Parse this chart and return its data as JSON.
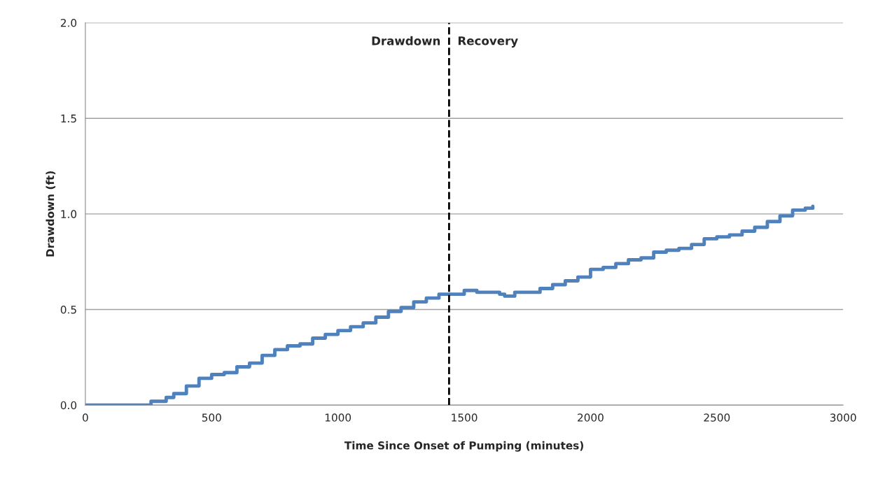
{
  "chart_data": {
    "type": "step",
    "xlabel": "Time Since Onset of Pumping (minutes)",
    "ylabel": "Drawdown (ft)",
    "x": [
      0,
      250,
      260,
      300,
      320,
      350,
      400,
      450,
      500,
      550,
      600,
      650,
      700,
      750,
      800,
      850,
      900,
      950,
      1000,
      1050,
      1100,
      1150,
      1200,
      1250,
      1300,
      1350,
      1400,
      1440,
      1500,
      1550,
      1600,
      1640,
      1660,
      1700,
      1750,
      1800,
      1850,
      1900,
      1950,
      2000,
      2050,
      2100,
      2150,
      2200,
      2250,
      2300,
      2350,
      2400,
      2450,
      2500,
      2550,
      2600,
      2650,
      2700,
      2750,
      2800,
      2850,
      2880
    ],
    "series": [
      {
        "color": "#4f81bd",
        "values": [
          0,
          0,
          0.02,
          0.02,
          0.04,
          0.06,
          0.1,
          0.14,
          0.16,
          0.17,
          0.2,
          0.22,
          0.26,
          0.29,
          0.31,
          0.32,
          0.35,
          0.37,
          0.39,
          0.41,
          0.43,
          0.46,
          0.49,
          0.51,
          0.54,
          0.56,
          0.58,
          0.58,
          0.6,
          0.59,
          0.59,
          0.58,
          0.57,
          0.59,
          0.59,
          0.61,
          0.63,
          0.65,
          0.67,
          0.71,
          0.72,
          0.74,
          0.76,
          0.77,
          0.8,
          0.81,
          0.82,
          0.84,
          0.87,
          0.88,
          0.89,
          0.91,
          0.93,
          0.96,
          0.99,
          1.02,
          1.03,
          1.04
        ]
      }
    ],
    "xlim": [
      0,
      3000
    ],
    "xticks": [
      0,
      500,
      1000,
      1500,
      2000,
      2500,
      3000
    ],
    "ylim": [
      0,
      2.0
    ],
    "yticks": [
      {
        "value": 0,
        "label": "0.0"
      },
      {
        "value": 0.5,
        "label": "0.5"
      },
      {
        "value": 1.0,
        "label": "1.0"
      },
      {
        "value": 1.5,
        "label": "1.5"
      },
      {
        "value": 2.0,
        "label": "2.0"
      }
    ],
    "ref_lines": [
      {
        "axis": "x",
        "value": 1440,
        "color": "#000000",
        "line_style": "dashed"
      }
    ],
    "annotations": [
      "Drawdown",
      "Recovery"
    ],
    "grid": "y",
    "legend": false,
    "marker": "none",
    "line_style": "solid"
  }
}
